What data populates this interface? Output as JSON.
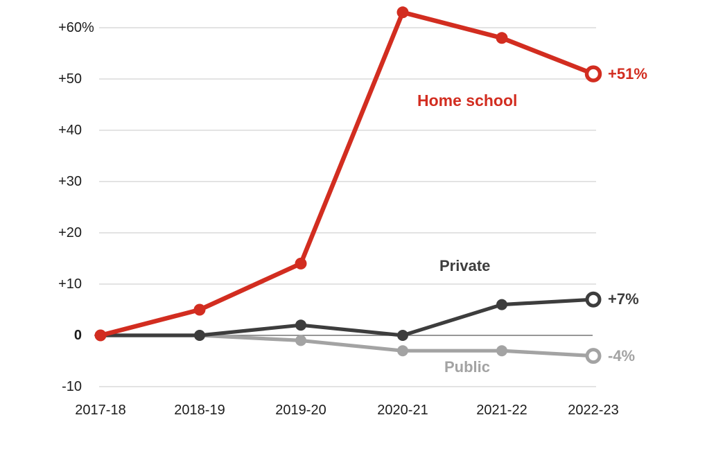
{
  "colors": {
    "red": "#d22d20",
    "dark": "#3d3d3d",
    "gray": "#a3a3a3",
    "gridline": "#e3e3e3",
    "zero_line": "#757575",
    "text": "#1c1c1c"
  },
  "chart_data": {
    "type": "line",
    "title": "",
    "xlabel": "",
    "ylabel": "",
    "x": [
      "2017-18",
      "2018-19",
      "2019-20",
      "2020-21",
      "2021-22",
      "2022-23"
    ],
    "y_axis": {
      "range": [
        -10,
        65
      ],
      "ticks": [
        {
          "label": "+60",
          "suffix": "%",
          "value": 60
        },
        {
          "label": "+50",
          "value": 50
        },
        {
          "label": "+40",
          "value": 40
        },
        {
          "label": "+30",
          "value": 30
        },
        {
          "label": "+20",
          "value": 20
        },
        {
          "label": "+10",
          "value": 10
        },
        {
          "label": "0",
          "value": 0,
          "bold": true
        },
        {
          "label": "-10",
          "value": -10
        }
      ]
    },
    "grid": true,
    "legend_position": "inline-labels",
    "series": [
      {
        "id": "home-school",
        "name": "Home school",
        "color": "#d22d20",
        "values": [
          0,
          5,
          14,
          63,
          58,
          51
        ],
        "end_label": "+51%",
        "last_marker": "open-ring"
      },
      {
        "id": "private",
        "name": "Private",
        "color": "#3d3d3d",
        "values": [
          0,
          0,
          2,
          0,
          6,
          7
        ],
        "end_label": "+7%",
        "last_marker": "open-ring"
      },
      {
        "id": "public",
        "name": "Public",
        "color": "#a3a3a3",
        "values": [
          0,
          0,
          -1,
          -3,
          -3,
          -4
        ],
        "end_label": "-4%",
        "last_marker": "open-ring"
      }
    ]
  }
}
